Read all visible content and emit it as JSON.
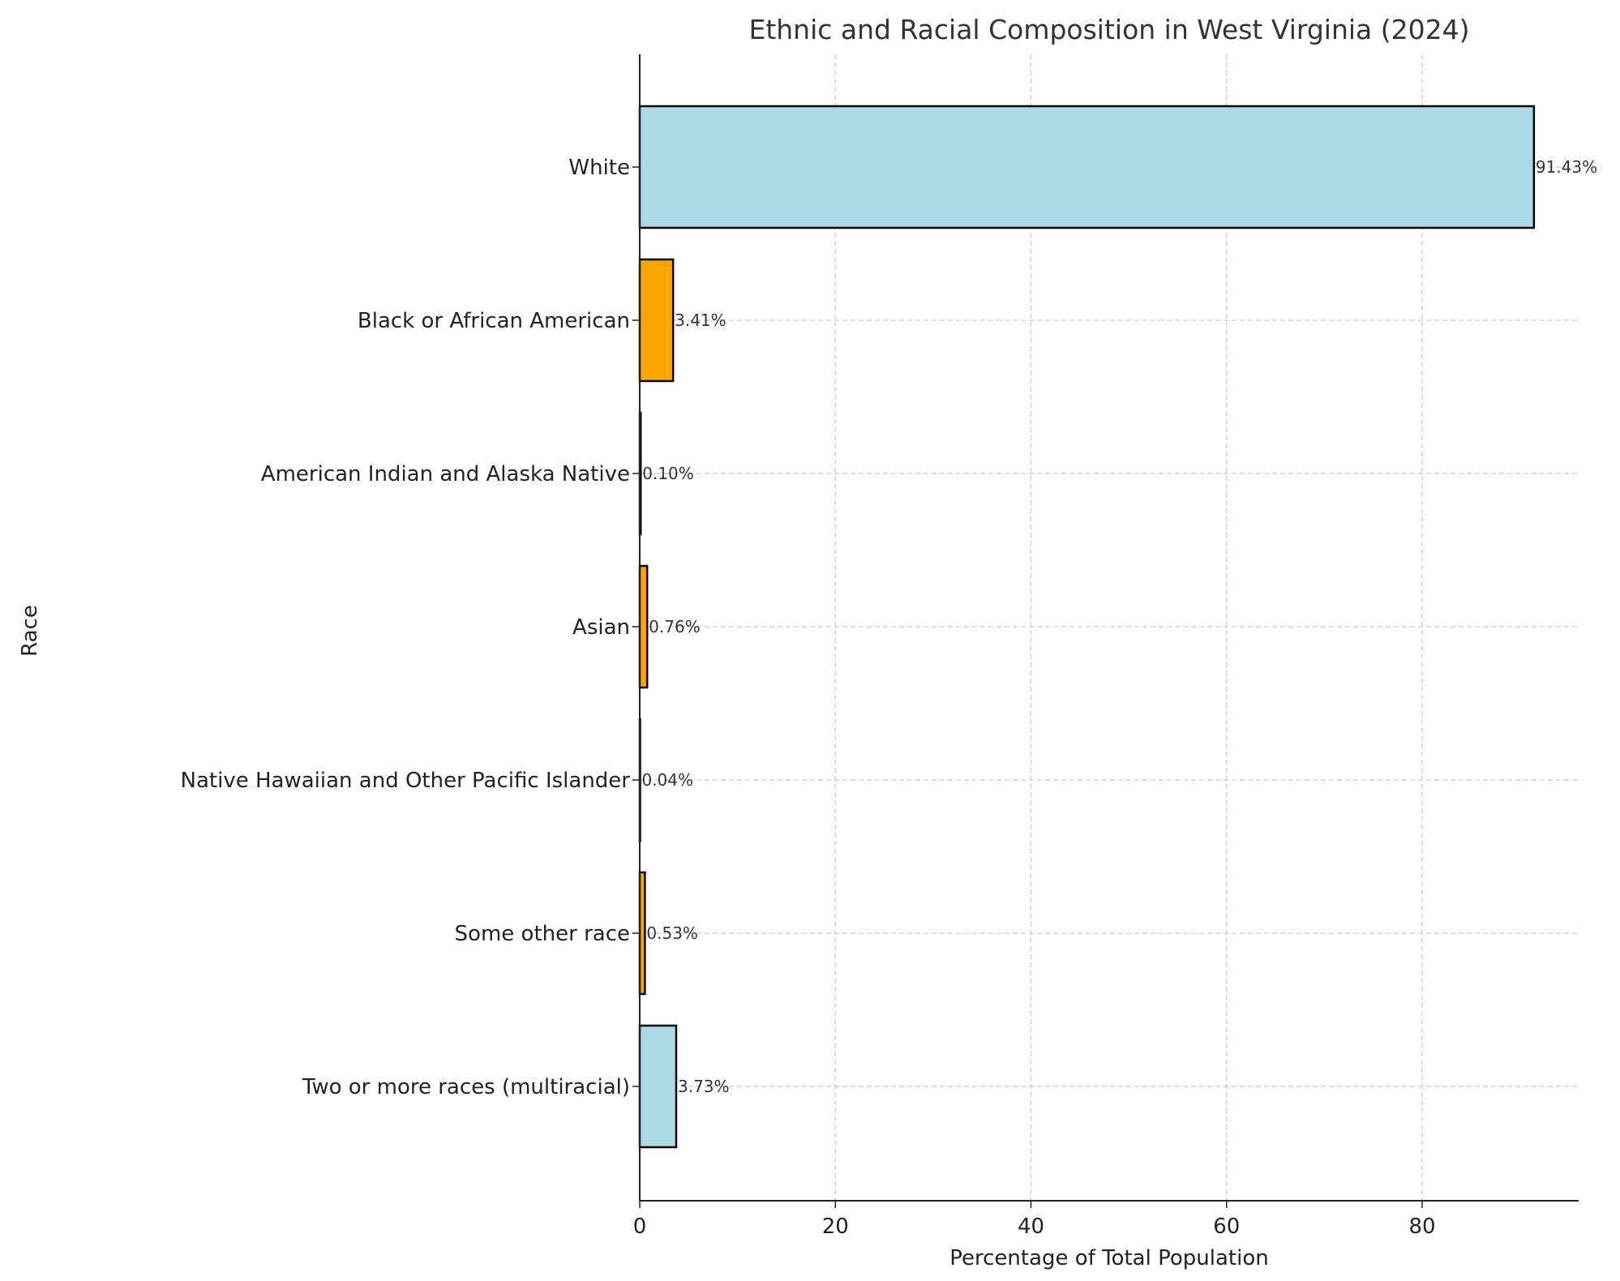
{
  "chart_data": {
    "type": "bar",
    "orientation": "horizontal",
    "title": "Ethnic and Racial Composition in West Virginia (2024)",
    "xlabel": "Percentage of Total Population",
    "ylabel": "Race",
    "categories": [
      "White",
      "Black or African American",
      "American Indian and Alaska Native",
      "Asian",
      "Native Hawaiian and Other Pacific Islander",
      "Some other race",
      "Two or more races (multiracial)"
    ],
    "values": [
      91.43,
      3.41,
      0.1,
      0.76,
      0.04,
      0.53,
      3.73
    ],
    "value_labels": [
      "91.43%",
      "3.41%",
      "0.10%",
      "0.76%",
      "0.04%",
      "0.53%",
      "3.73%"
    ],
    "bar_colors": [
      "#add8e6",
      "#ffa500",
      "#add8e6",
      "#ffa500",
      "#add8e6",
      "#ffa500",
      "#add8e6"
    ],
    "xlim": [
      0,
      96
    ],
    "xticks": [
      0,
      20,
      40,
      60,
      80
    ],
    "xtick_labels": [
      "0",
      "20",
      "40",
      "60",
      "80"
    ],
    "grid": true
  }
}
